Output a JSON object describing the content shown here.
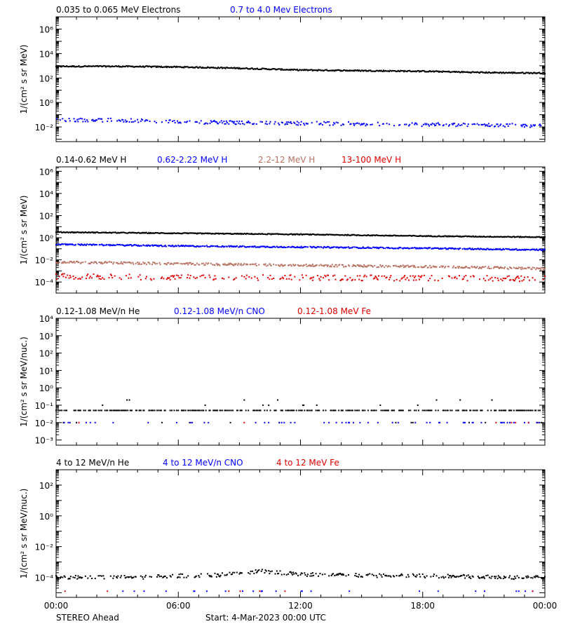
{
  "colors": {
    "black": "#000000",
    "blue": "#0000ff",
    "tan": "#b87060",
    "red": "#e00000"
  },
  "footer": {
    "left": "STEREO Ahead",
    "start": "Start:  4-Mar-2023 00:00 UTC"
  },
  "chart_data": [
    {
      "type": "scatter",
      "ylabel": "1/(cm² s sr MeV)",
      "yscale": "log",
      "ylim_exp": [
        -3.2,
        7
      ],
      "yticks": [
        "10⁶",
        "10⁴",
        "10²",
        "10⁰",
        "10⁻²"
      ],
      "ytick_exps": [
        6,
        4,
        2,
        0,
        -2
      ],
      "xlim_hours": [
        0,
        24
      ],
      "legend": [
        {
          "name": "0.035 to 0.065 MeV Electrons",
          "color": "black"
        },
        {
          "name": "0.7 to 4.0 Mev Electrons",
          "color": "blue"
        }
      ],
      "series": [
        {
          "name": "0.035 to 0.065 MeV Electrons",
          "color": "black",
          "x": [
            0,
            3,
            6,
            9,
            12,
            15,
            18,
            21,
            24
          ],
          "log10y": [
            2.95,
            2.95,
            2.9,
            2.8,
            2.65,
            2.6,
            2.55,
            2.45,
            2.4
          ],
          "scatter": 0.05,
          "density": 1
        },
        {
          "name": "0.7 to 4.0 Mev Electrons",
          "color": "blue",
          "x": [
            0,
            3,
            6,
            9,
            12,
            15,
            18,
            21,
            24
          ],
          "log10y": [
            -1.4,
            -1.45,
            -1.6,
            -1.65,
            -1.7,
            -1.75,
            -1.8,
            -1.85,
            -1.9
          ],
          "scatter": 0.15,
          "density": 0.5
        }
      ]
    },
    {
      "type": "scatter",
      "ylabel": "1/(cm² s sr MeV)",
      "yscale": "log",
      "ylim_exp": [
        -5,
        6.4
      ],
      "yticks": [
        "10⁶",
        "10⁴",
        "10²",
        "10⁰",
        "10⁻²",
        "10⁻⁴"
      ],
      "ytick_exps": [
        6,
        4,
        2,
        0,
        -2,
        -4
      ],
      "xlim_hours": [
        0,
        24
      ],
      "legend": [
        {
          "name": "0.14-0.62 MeV H",
          "color": "black"
        },
        {
          "name": "0.62-2.22 MeV H",
          "color": "blue"
        },
        {
          "name": "2.2-12 MeV H",
          "color": "tan"
        },
        {
          "name": "13-100 MeV H",
          "color": "red"
        }
      ],
      "series": [
        {
          "name": "0.14-0.62 MeV H",
          "color": "black",
          "x": [
            0,
            6,
            12,
            18,
            24
          ],
          "log10y": [
            0.5,
            0.4,
            0.3,
            0.15,
            0.05
          ],
          "scatter": 0.04,
          "density": 1
        },
        {
          "name": "0.62-2.22 MeV H",
          "color": "blue",
          "x": [
            0,
            6,
            12,
            18,
            24
          ],
          "log10y": [
            -0.6,
            -0.75,
            -0.85,
            -0.95,
            -1.1
          ],
          "scatter": 0.06,
          "density": 0.9
        },
        {
          "name": "2.2-12 MeV H",
          "color": "tan",
          "x": [
            0,
            6,
            12,
            18,
            24
          ],
          "log10y": [
            -2.2,
            -2.35,
            -2.5,
            -2.6,
            -2.8
          ],
          "scatter": 0.1,
          "density": 0.7
        },
        {
          "name": "13-100 MeV H",
          "color": "red",
          "x": [
            0,
            6,
            12,
            18,
            24
          ],
          "log10y": [
            -3.5,
            -3.6,
            -3.6,
            -3.65,
            -3.7
          ],
          "scatter": 0.25,
          "density": 0.4
        }
      ]
    },
    {
      "type": "scatter",
      "ylabel": "1/(cm² s sr MeV/nuc.)",
      "yscale": "log",
      "ylim_exp": [
        -3.3,
        4
      ],
      "yticks": [
        "10⁴",
        "10³",
        "10²",
        "10¹",
        "10⁰",
        "10⁻¹",
        "10⁻²",
        "10⁻³"
      ],
      "ytick_exps": [
        4,
        3,
        2,
        1,
        0,
        -1,
        -2,
        -3
      ],
      "xlim_hours": [
        0,
        24
      ],
      "legend": [
        {
          "name": "0.12-1.08 MeV/n He",
          "color": "black"
        },
        {
          "name": "0.12-1.08 MeV/n CNO",
          "color": "blue"
        },
        {
          "name": "0.12-1.08 MeV Fe",
          "color": "red"
        }
      ],
      "series": [
        {
          "name": "0.12-1.08 MeV/n He",
          "color": "black",
          "x": [
            0,
            24
          ],
          "log10y": [
            -1.3,
            -1.3
          ],
          "scatter": 0.3,
          "density": 0.5,
          "quantized": [
            -0.7,
            -1.0,
            -1.3,
            -2.0
          ]
        },
        {
          "name": "0.12-1.08 MeV/n CNO",
          "color": "blue",
          "x": [
            0,
            24
          ],
          "log10y": [
            -2,
            -2
          ],
          "scatter": 0,
          "density": 0.07
        },
        {
          "name": "0.12-1.08 MeV Fe",
          "color": "red",
          "x": [
            0,
            24
          ],
          "log10y": [
            -2,
            -2
          ],
          "scatter": 0,
          "density": 0.01
        }
      ]
    },
    {
      "type": "scatter",
      "ylabel": "1/(cm² s sr MeV/nuc.)",
      "yscale": "log",
      "ylim_exp": [
        -5.3,
        3
      ],
      "yticks": [
        "10²",
        "10⁰",
        "10⁻²",
        "10⁻⁴"
      ],
      "ytick_exps": [
        2,
        0,
        -2,
        -4
      ],
      "xlim_hours": [
        0,
        24
      ],
      "legend": [
        {
          "name": "4 to 12 MeV/n He",
          "color": "black"
        },
        {
          "name": "4 to 12 MeV/n CNO",
          "color": "blue"
        },
        {
          "name": "4 to 12 MeV Fe",
          "color": "red"
        }
      ],
      "series": [
        {
          "name": "4 to 12 MeV/n He",
          "color": "black",
          "x": [
            0,
            2,
            4,
            6,
            8,
            10,
            12,
            14,
            16,
            18,
            20,
            22,
            24
          ],
          "log10y": [
            -4,
            -4,
            -4,
            -3.9,
            -3.85,
            -3.6,
            -3.8,
            -3.85,
            -3.9,
            -3.9,
            -3.95,
            -4,
            -4
          ],
          "scatter": 0.12,
          "density": 0.5
        },
        {
          "name": "4 to 12 MeV/n CNO",
          "color": "blue",
          "x": [
            0,
            24
          ],
          "log10y": [
            -4.9,
            -4.9
          ],
          "scatter": 0,
          "density": 0.03
        },
        {
          "name": "4 to 12 MeV Fe",
          "color": "red",
          "x": [
            0,
            24
          ],
          "log10y": [
            -4.9,
            -4.9
          ],
          "scatter": 0,
          "density": 0.01
        }
      ]
    }
  ],
  "xticks": [
    "00:00",
    "06:00",
    "12:00",
    "18:00",
    "00:00"
  ]
}
